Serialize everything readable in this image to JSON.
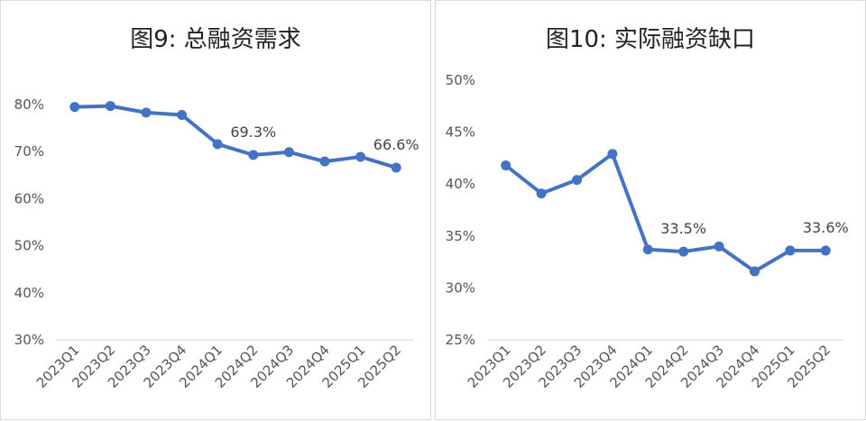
{
  "chart_data": [
    {
      "type": "line",
      "title": "图9: 总融资需求",
      "categories": [
        "2023Q1",
        "2023Q2",
        "2023Q3",
        "2023Q4",
        "2024Q1",
        "2024Q2",
        "2024Q3",
        "2024Q4",
        "2025Q1",
        "2025Q2"
      ],
      "values": [
        79.5,
        79.7,
        78.3,
        77.8,
        71.6,
        69.3,
        69.9,
        67.9,
        68.9,
        66.6
      ],
      "ylim": [
        30,
        80
      ],
      "yticks": [
        30,
        40,
        50,
        60,
        70,
        80
      ],
      "ytick_labels": [
        "30%",
        "40%",
        "50%",
        "60%",
        "70%",
        "80%"
      ],
      "data_labels": [
        {
          "index": 5,
          "text": "69.3%"
        },
        {
          "index": 9,
          "text": "66.6%"
        }
      ],
      "color": "#4472C4",
      "grid": false,
      "legend": "none"
    },
    {
      "type": "line",
      "title": "图10: 实际融资缺口",
      "categories": [
        "2023Q1",
        "2023Q2",
        "2023Q3",
        "2023Q4",
        "2024Q1",
        "2024Q2",
        "2024Q3",
        "2024Q4",
        "2025Q1",
        "2025Q2"
      ],
      "values": [
        41.8,
        39.1,
        40.4,
        42.9,
        33.7,
        33.5,
        34.0,
        31.6,
        33.6,
        33.6
      ],
      "ylim": [
        25,
        50
      ],
      "yticks": [
        25,
        30,
        35,
        40,
        45,
        50
      ],
      "ytick_labels": [
        "25%",
        "30%",
        "35%",
        "40%",
        "45%",
        "50%"
      ],
      "data_labels": [
        {
          "index": 5,
          "text": "33.5%"
        },
        {
          "index": 9,
          "text": "33.6%"
        }
      ],
      "color": "#4472C4",
      "grid": false,
      "legend": "none"
    }
  ]
}
